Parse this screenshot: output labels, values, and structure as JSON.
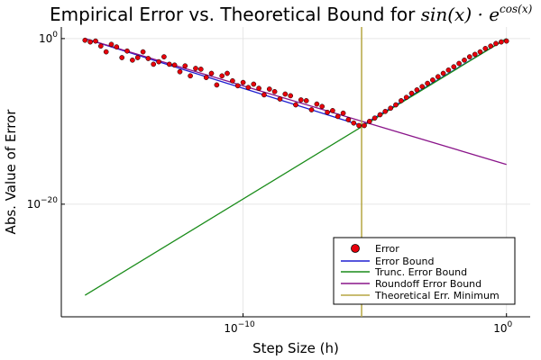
{
  "chart_data": {
    "type": "scatter",
    "title": "Empirical Error vs. Theoretical Bound for ",
    "title_math": {
      "base": "sin(x) · e",
      "sup": "cos(x)"
    },
    "xlabel": "Step Size (h)",
    "ylabel": "Abs. Value of Error",
    "x_scale": "log10",
    "y_scale": "log10",
    "xlim_log10": [
      -16.9,
      0.9
    ],
    "ylim_log10": [
      -33.6,
      1.4
    ],
    "grid": true,
    "legend_position": "bottom-right",
    "x_ticks": [
      {
        "base": "10",
        "exp": "−10",
        "log10": -10
      },
      {
        "base": "10",
        "exp": "0",
        "log10": 0
      }
    ],
    "y_ticks": [
      {
        "base": "10",
        "exp": "0",
        "log10": 0
      },
      {
        "base": "10",
        "exp": "−20",
        "log10": -20
      }
    ],
    "colors": {
      "error": "#e8000b",
      "error_edge": "#000000",
      "error_bound": "#1f1fd1",
      "trunc_bound": "#1a8c1a",
      "roundoff_bound": "#8a158a",
      "theoretical_min": "#b5a642",
      "grid": "#e6e6e6",
      "axis": "#000000"
    },
    "series": [
      {
        "name": "Error",
        "kind": "scatter"
      },
      {
        "name": "Error Bound",
        "kind": "line"
      },
      {
        "name": "Trunc. Error Bound",
        "kind": "line"
      },
      {
        "name": "Roundoff Error Bound",
        "kind": "line"
      },
      {
        "name": "Theoretical Err. Minimum",
        "kind": "vline"
      }
    ],
    "error_bound": {
      "x_log10": [
        -16,
        -5.5,
        0
      ],
      "y_log10": [
        0,
        -10.5,
        0
      ]
    },
    "trunc_bound": {
      "x_log10": [
        -16,
        0
      ],
      "y_log10": [
        -31,
        0
      ]
    },
    "roundoff_bound": {
      "x_log10": [
        -16,
        0
      ],
      "y_log10": [
        0,
        -15.2
      ]
    },
    "theoretical_min_x_log10": -5.5,
    "error_points": {
      "x_log10": [
        -16.0,
        -15.8,
        -15.6,
        -15.4,
        -15.2,
        -15.0,
        -14.8,
        -14.6,
        -14.4,
        -14.2,
        -14.0,
        -13.8,
        -13.6,
        -13.4,
        -13.2,
        -13.0,
        -12.8,
        -12.6,
        -12.4,
        -12.2,
        -12.0,
        -11.8,
        -11.6,
        -11.4,
        -11.2,
        -11.0,
        -10.8,
        -10.6,
        -10.4,
        -10.2,
        -10.0,
        -9.8,
        -9.6,
        -9.4,
        -9.2,
        -9.0,
        -8.8,
        -8.6,
        -8.4,
        -8.2,
        -8.0,
        -7.8,
        -7.6,
        -7.4,
        -7.2,
        -7.0,
        -6.8,
        -6.6,
        -6.4,
        -6.2,
        -6.0,
        -5.8,
        -5.6,
        -5.4,
        -5.2,
        -5.0,
        -4.8,
        -4.6,
        -4.4,
        -4.2,
        -4.0,
        -3.8,
        -3.6,
        -3.4,
        -3.2,
        -3.0,
        -2.8,
        -2.6,
        -2.4,
        -2.2,
        -2.0,
        -1.8,
        -1.6,
        -1.4,
        -1.2,
        -1.0,
        -0.8,
        -0.6,
        -0.4,
        -0.2,
        0.0
      ],
      "y_log10": [
        -0.2,
        -0.4,
        -0.3,
        -0.9,
        -1.6,
        -0.7,
        -1.0,
        -2.3,
        -1.5,
        -2.6,
        -2.3,
        -1.6,
        -2.4,
        -3.1,
        -2.8,
        -2.2,
        -3.1,
        -3.2,
        -4.0,
        -3.3,
        -4.5,
        -3.6,
        -3.7,
        -4.7,
        -4.2,
        -5.6,
        -4.5,
        -4.2,
        -5.1,
        -5.7,
        -5.3,
        -5.9,
        -5.5,
        -6.0,
        -6.8,
        -6.1,
        -6.4,
        -7.3,
        -6.7,
        -6.9,
        -8.0,
        -7.4,
        -7.5,
        -8.6,
        -7.9,
        -8.2,
        -8.9,
        -8.7,
        -9.4,
        -9.0,
        -9.8,
        -10.2,
        -10.5,
        -10.5,
        -10.0,
        -9.6,
        -9.2,
        -8.8,
        -8.4,
        -8.0,
        -7.5,
        -7.1,
        -6.6,
        -6.2,
        -5.8,
        -5.4,
        -5.0,
        -4.6,
        -4.2,
        -3.8,
        -3.4,
        -3.0,
        -2.6,
        -2.2,
        -1.9,
        -1.6,
        -1.2,
        -0.9,
        -0.6,
        -0.4,
        -0.3
      ]
    }
  }
}
